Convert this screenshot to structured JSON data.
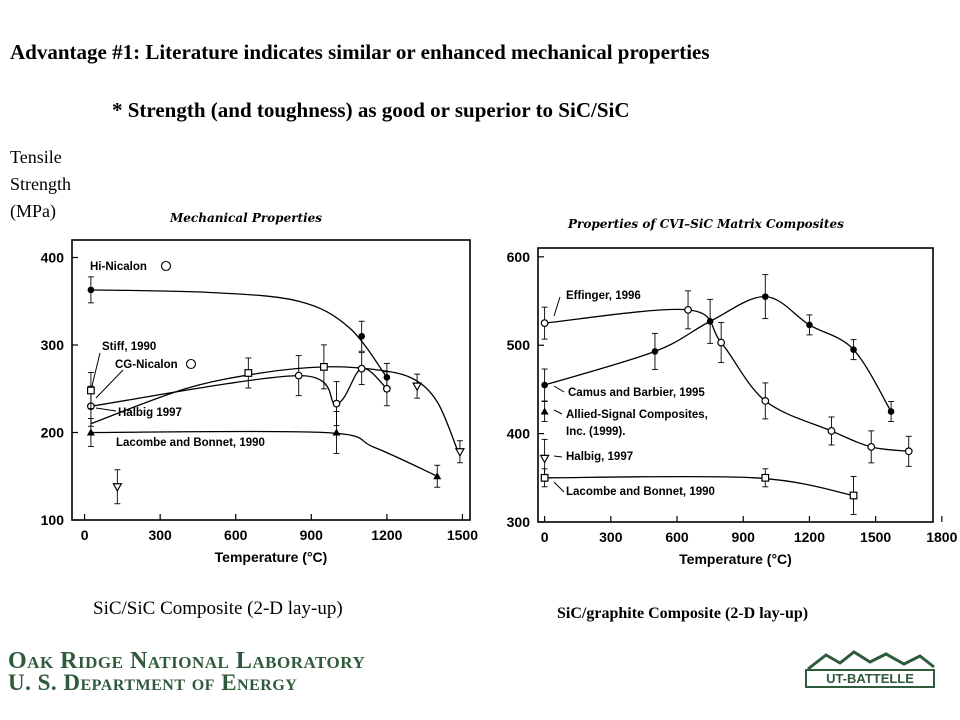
{
  "slide": {
    "headline": "Advantage #1:   Literature indicates similar or enhanced mechanical properties",
    "subheadline": "*  Strength (and toughness) as good or superior to SiC/SiC",
    "ylabel_lines": [
      "Tensile",
      "Strength",
      "(MPa)"
    ],
    "caption_left": "SiC/SiC Composite (2-D lay-up)",
    "caption_right": "SiC/graphite Composite (2-D lay-up)"
  },
  "footer": {
    "lab_line1": "Oak Ridge National Laboratory",
    "lab_line2": "U. S. Department of Energy",
    "logo_text": "UT-BATTELLE",
    "brand_color": "#2f5a3b"
  },
  "chart_data": [
    {
      "type": "line",
      "title": "Mechanical Properties",
      "xlabel": "Temperature (°C)",
      "ylabel": "",
      "xlim": [
        -50,
        1530
      ],
      "ylim": [
        100,
        420
      ],
      "xticks": [
        0,
        300,
        600,
        900,
        1200,
        1500
      ],
      "yticks": [
        100,
        200,
        300,
        400
      ],
      "grid": false,
      "series": [
        {
          "name": "Hi-Nicalon",
          "marker": "filled-circle",
          "points": [
            [
              25,
              363
            ],
            [
              1100,
              310
            ],
            [
              1200,
              263
            ]
          ],
          "curve": [
            [
              25,
              363
            ],
            [
              500,
              360
            ],
            [
              850,
              350
            ],
            [
              1050,
              320
            ],
            [
              1200,
              263
            ]
          ]
        },
        {
          "name": "CG-Nicalon",
          "marker": "open-circle",
          "points": [
            [
              25,
              230
            ],
            [
              850,
              265
            ],
            [
              1000,
              233
            ],
            [
              1100,
              273
            ],
            [
              1200,
              250
            ]
          ],
          "curve": [
            [
              25,
              230
            ],
            [
              850,
              265
            ],
            [
              1000,
              233
            ],
            [
              1100,
              273
            ],
            [
              1200,
              250
            ]
          ]
        },
        {
          "name": "Stiff, 1990",
          "marker": "open-square",
          "points": [
            [
              25,
              248
            ],
            [
              650,
              268
            ],
            [
              950,
              275
            ]
          ],
          "curve": [
            [
              25,
              210
            ],
            [
              400,
              250
            ],
            [
              700,
              268
            ],
            [
              950,
              275
            ],
            [
              1150,
              272
            ],
            [
              1300,
              262
            ],
            [
              1400,
              235
            ],
            [
              1480,
              180
            ]
          ]
        },
        {
          "name": "Halbig 1997",
          "marker": "open-triangle-down",
          "points": [
            [
              130,
              138
            ],
            [
              1320,
              253
            ],
            [
              1490,
              178
            ]
          ]
        },
        {
          "name": "Lacombe and Bonnet, 1990",
          "marker": "filled-triangle",
          "points": [
            [
              25,
              200
            ],
            [
              1000,
              200
            ],
            [
              1400,
              150
            ]
          ],
          "curve": [
            [
              25,
              200
            ],
            [
              950,
              200
            ],
            [
              1150,
              183
            ],
            [
              1400,
              150
            ]
          ]
        }
      ]
    },
    {
      "type": "line",
      "title": "Properties of CVI–SiC Matrix Composites",
      "xlabel": "Temperature (°C)",
      "ylabel": "",
      "xlim": [
        -30,
        1760
      ],
      "ylim": [
        300,
        610
      ],
      "xticks": [
        0,
        300,
        600,
        900,
        1200,
        1500,
        1800
      ],
      "yticks": [
        300,
        400,
        500,
        600
      ],
      "grid": false,
      "series": [
        {
          "name": "Effinger, 1996",
          "marker": "open-circle",
          "points": [
            [
              0,
              525
            ],
            [
              650,
              540
            ],
            [
              800,
              503
            ],
            [
              1000,
              437
            ],
            [
              1300,
              403
            ],
            [
              1480,
              385
            ],
            [
              1650,
              380
            ]
          ],
          "curve": [
            [
              0,
              525
            ],
            [
              650,
              540
            ],
            [
              800,
              503
            ],
            [
              1000,
              437
            ],
            [
              1300,
              403
            ],
            [
              1480,
              385
            ],
            [
              1650,
              380
            ]
          ]
        },
        {
          "name": "Camus and Barbier, 1995",
          "marker": "filled-circle",
          "points": [
            [
              0,
              455
            ],
            [
              500,
              493
            ],
            [
              750,
              527
            ],
            [
              1000,
              555
            ],
            [
              1200,
              523
            ],
            [
              1400,
              495
            ],
            [
              1570,
              425
            ]
          ],
          "curve": [
            [
              0,
              455
            ],
            [
              500,
              493
            ],
            [
              750,
              527
            ],
            [
              1000,
              555
            ],
            [
              1200,
              523
            ],
            [
              1400,
              495
            ],
            [
              1570,
              425
            ]
          ]
        },
        {
          "name": "Allied-Signal Composites, Inc. (1999).",
          "marker": "filled-triangle",
          "points": [
            [
              0,
              425
            ]
          ]
        },
        {
          "name": "Halbig, 1997",
          "marker": "open-triangle-down",
          "points": [
            [
              0,
              372
            ]
          ]
        },
        {
          "name": "Lacombe and Bonnet, 1990",
          "marker": "open-square",
          "points": [
            [
              0,
              350
            ],
            [
              1000,
              350
            ],
            [
              1400,
              330
            ]
          ],
          "curve": [
            [
              0,
              350
            ],
            [
              950,
              350
            ],
            [
              1400,
              330
            ]
          ]
        }
      ]
    }
  ]
}
